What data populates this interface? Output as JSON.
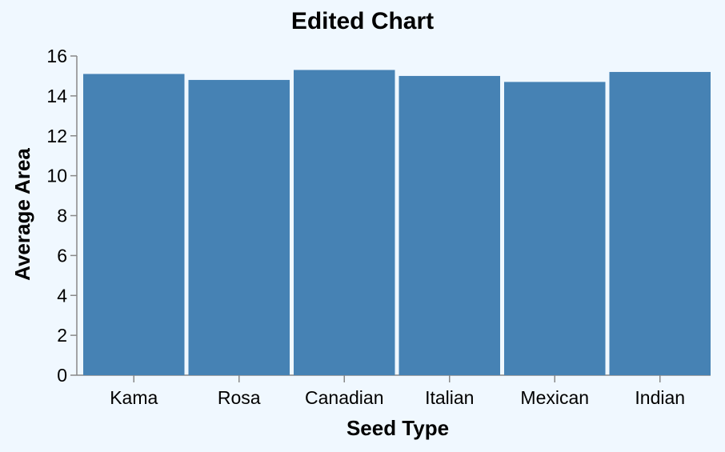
{
  "chart_data": {
    "type": "bar",
    "title": "Edited Chart",
    "xlabel": "Seed Type",
    "ylabel": "Average Area",
    "categories": [
      "Kama",
      "Rosa",
      "Canadian",
      "Italian",
      "Mexican",
      "Indian"
    ],
    "values": [
      15.1,
      14.8,
      15.3,
      15.0,
      14.7,
      15.2
    ],
    "ylim": [
      0,
      16
    ],
    "yticks": [
      0,
      2,
      4,
      6,
      8,
      10,
      12,
      14,
      16
    ],
    "grid": false,
    "legend": "none",
    "colors": {
      "bar": "#4682b4",
      "background": "#f0f8ff",
      "axis": "#888888"
    }
  }
}
